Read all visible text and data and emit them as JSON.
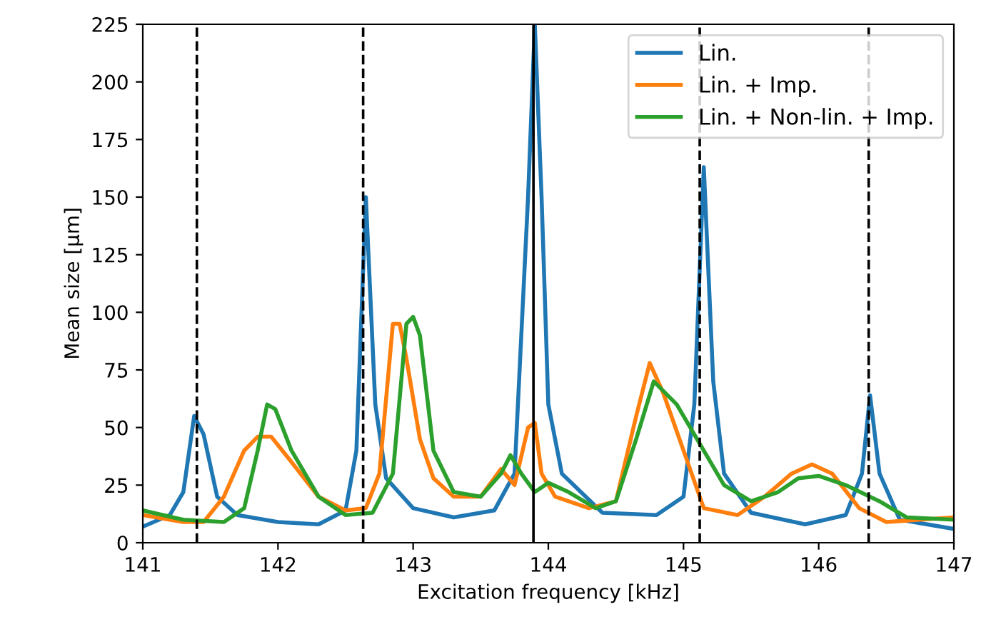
{
  "chart_data": {
    "type": "line",
    "xlabel": "Excitation frequency [kHz]",
    "ylabel": "Mean size [µm]",
    "xlim": [
      141,
      147
    ],
    "xticks": [
      141,
      142,
      143,
      144,
      145,
      146,
      147
    ],
    "ylim": [
      0,
      225
    ],
    "yticks": [
      0,
      25,
      50,
      75,
      100,
      125,
      150,
      175,
      200,
      225
    ],
    "grid": false,
    "legend": "top right",
    "marker": "none",
    "line_style": "solid",
    "series": [
      {
        "name": "Lin.",
        "color": "#1f77b4",
        "x": [
          141.0,
          141.2,
          141.3,
          141.38,
          141.45,
          141.55,
          141.7,
          142.0,
          142.3,
          142.5,
          142.58,
          142.65,
          142.72,
          142.8,
          143.0,
          143.3,
          143.6,
          143.75,
          143.85,
          143.9,
          143.95,
          144.0,
          144.1,
          144.4,
          144.8,
          145.0,
          145.08,
          145.15,
          145.22,
          145.3,
          145.5,
          145.9,
          146.2,
          146.32,
          146.38,
          146.45,
          146.6,
          147.0
        ],
        "values": [
          7,
          12,
          22,
          55,
          47,
          20,
          12,
          9,
          8,
          14,
          40,
          150,
          60,
          28,
          15,
          11,
          14,
          30,
          150,
          225,
          150,
          60,
          30,
          13,
          12,
          20,
          60,
          163,
          70,
          30,
          13,
          8,
          12,
          30,
          64,
          30,
          10,
          6
        ]
      },
      {
        "name": "Lin. + Imp.",
        "color": "#ff7f0e",
        "x": [
          141.0,
          141.3,
          141.45,
          141.6,
          141.75,
          141.85,
          141.95,
          142.1,
          142.3,
          142.5,
          142.65,
          142.75,
          142.85,
          142.9,
          142.95,
          143.05,
          143.15,
          143.3,
          143.5,
          143.65,
          143.75,
          143.85,
          143.9,
          143.95,
          144.05,
          144.3,
          144.5,
          144.65,
          144.75,
          144.85,
          145.0,
          145.15,
          145.4,
          145.6,
          145.8,
          145.95,
          146.1,
          146.3,
          146.5,
          147.0
        ],
        "values": [
          12,
          9,
          9,
          20,
          40,
          46,
          46,
          35,
          20,
          14,
          15,
          30,
          95,
          95,
          80,
          45,
          28,
          20,
          20,
          32,
          25,
          50,
          52,
          30,
          20,
          15,
          18,
          55,
          78,
          65,
          40,
          15,
          12,
          20,
          30,
          34,
          30,
          15,
          9,
          11
        ]
      },
      {
        "name": "Lin. + Non-lin. + Imp.",
        "color": "#2ca02c",
        "x": [
          141.0,
          141.3,
          141.6,
          141.75,
          141.85,
          141.92,
          141.98,
          142.1,
          142.3,
          142.5,
          142.7,
          142.85,
          142.95,
          143.0,
          143.05,
          143.15,
          143.3,
          143.5,
          143.65,
          143.72,
          143.8,
          143.9,
          144.0,
          144.15,
          144.35,
          144.5,
          144.65,
          144.78,
          144.95,
          145.1,
          145.3,
          145.5,
          145.7,
          145.85,
          146.0,
          146.2,
          146.45,
          146.65,
          147.0
        ],
        "values": [
          14,
          10,
          9,
          15,
          40,
          60,
          58,
          40,
          20,
          12,
          13,
          30,
          95,
          98,
          90,
          40,
          22,
          20,
          30,
          38,
          30,
          22,
          26,
          22,
          15,
          18,
          45,
          70,
          60,
          45,
          25,
          18,
          22,
          28,
          29,
          25,
          18,
          11,
          10
        ]
      }
    ],
    "ref_lines": [
      {
        "axis": "x",
        "value": 141.4,
        "line_style": "dashed",
        "color": "#000000"
      },
      {
        "axis": "x",
        "value": 142.63,
        "line_style": "dashed",
        "color": "#000000"
      },
      {
        "axis": "x",
        "value": 143.89,
        "line_style": "solid",
        "color": "#000000"
      },
      {
        "axis": "x",
        "value": 145.12,
        "line_style": "dashed",
        "color": "#000000"
      },
      {
        "axis": "x",
        "value": 146.37,
        "line_style": "dashed",
        "color": "#000000"
      }
    ]
  }
}
